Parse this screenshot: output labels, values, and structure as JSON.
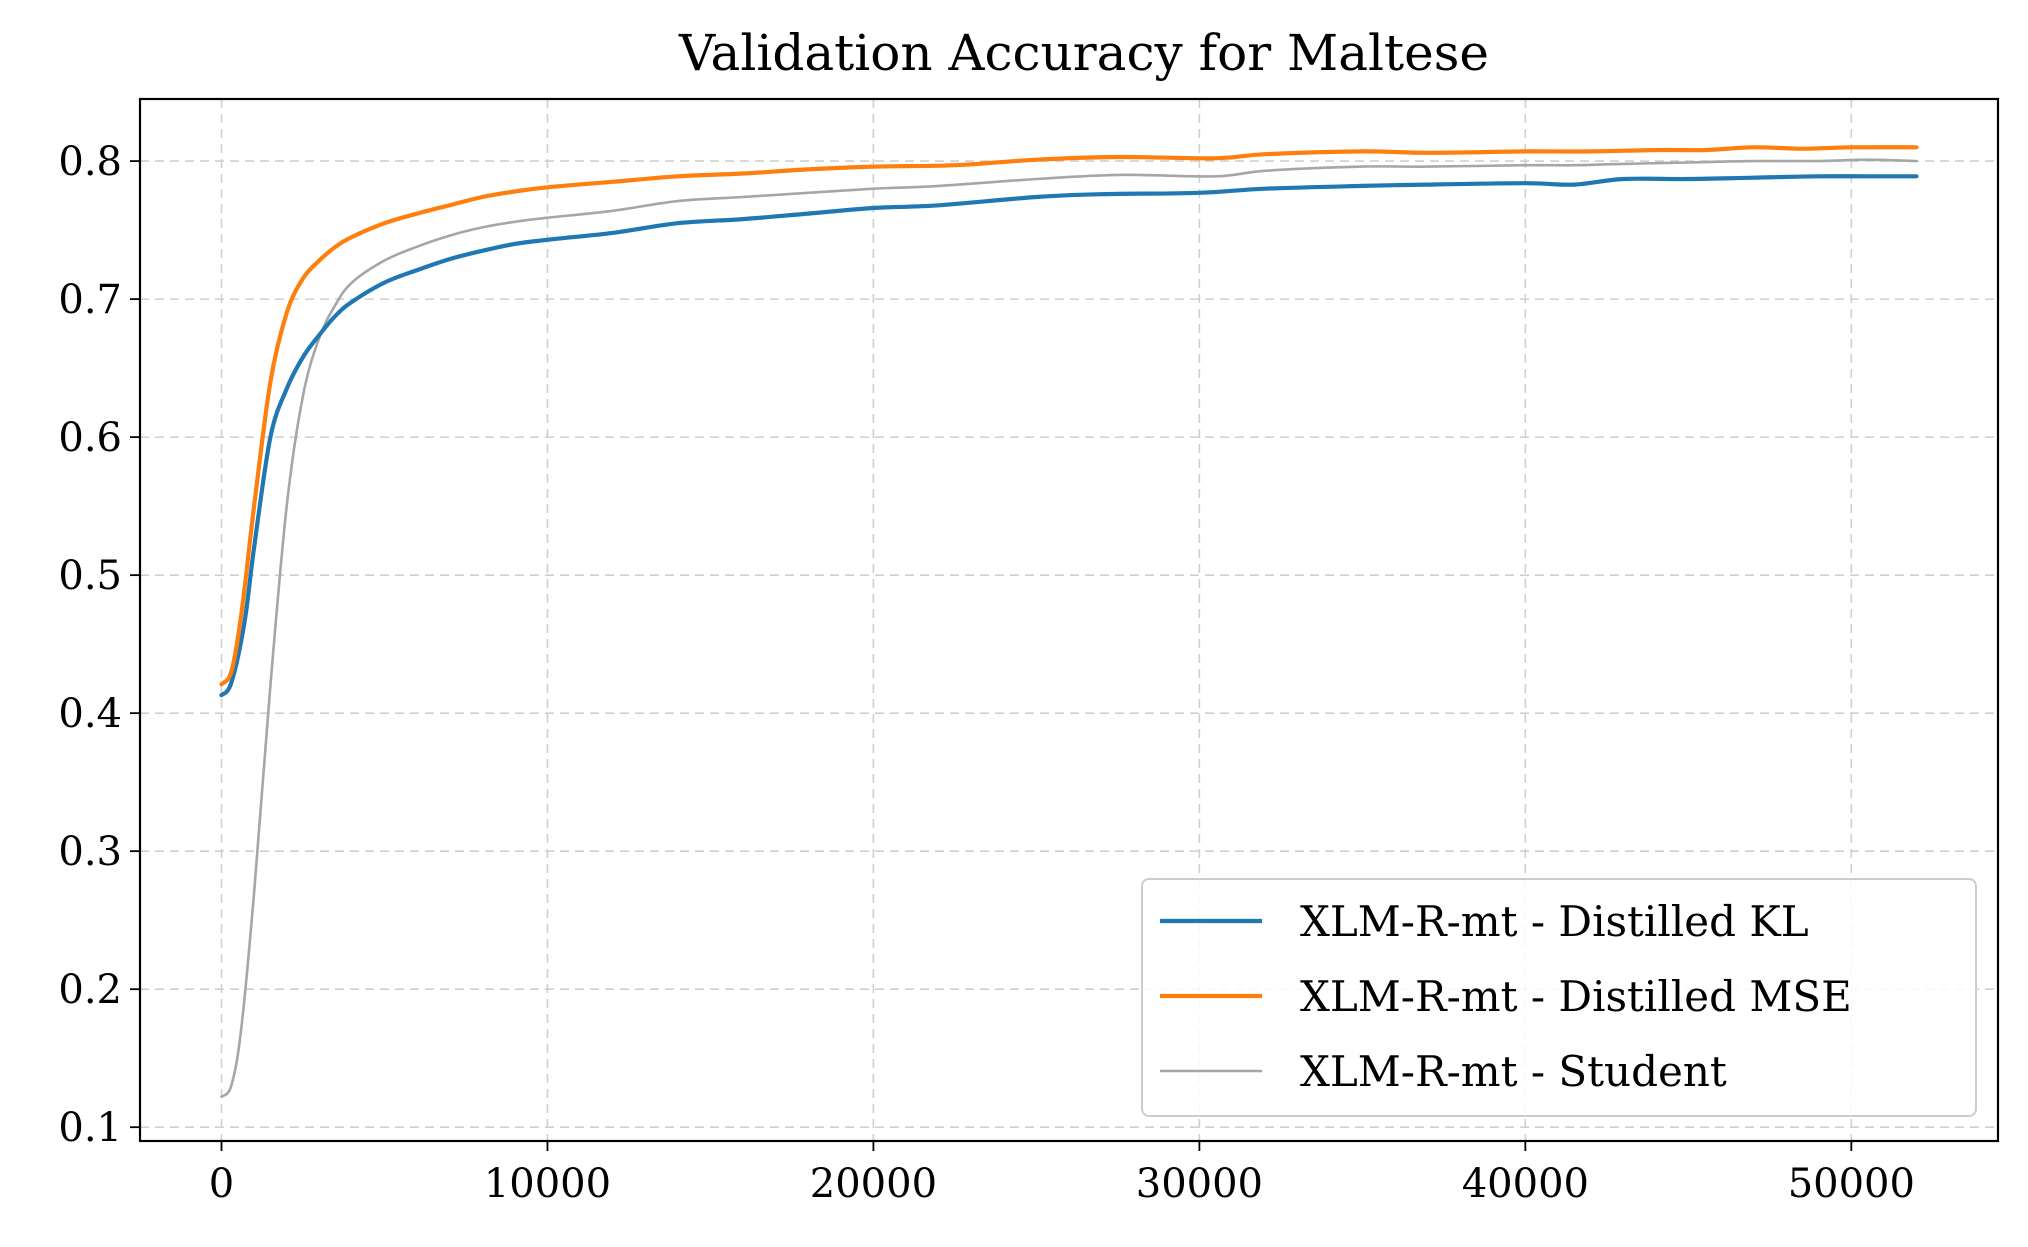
{
  "chart_data": {
    "type": "line",
    "title": "Validation Accuracy for Maltese",
    "xlabel": "",
    "ylabel": "",
    "xlim": [
      -2500,
      54500
    ],
    "ylim": [
      0.09,
      0.845
    ],
    "x_ticks": [
      0,
      10000,
      20000,
      30000,
      40000,
      50000
    ],
    "x_tick_labels": [
      "0",
      "10000",
      "20000",
      "30000",
      "40000",
      "50000"
    ],
    "y_ticks": [
      0.1,
      0.2,
      0.3,
      0.4,
      0.5,
      0.6,
      0.7,
      0.8
    ],
    "y_tick_labels": [
      "0.1",
      "0.2",
      "0.3",
      "0.4",
      "0.5",
      "0.6",
      "0.7",
      "0.8"
    ],
    "grid": true,
    "legend_position": "lower-right",
    "series": [
      {
        "name": "XLM-R-mt - Distilled KL",
        "color": "#1f77b4",
        "x": [
          0,
          300,
          700,
          1000,
          1500,
          2000,
          2500,
          3000,
          3500,
          4000,
          5000,
          6000,
          7000,
          8000,
          9000,
          10000,
          12000,
          14000,
          16000,
          18000,
          20000,
          22000,
          25000,
          27000,
          30000,
          32000,
          35000,
          37000,
          40000,
          41500,
          43000,
          45000,
          47000,
          49000,
          50500,
          52000
        ],
        "values": [
          0.413,
          0.422,
          0.465,
          0.52,
          0.6,
          0.635,
          0.658,
          0.674,
          0.688,
          0.698,
          0.712,
          0.721,
          0.729,
          0.735,
          0.74,
          0.743,
          0.748,
          0.755,
          0.758,
          0.762,
          0.766,
          0.768,
          0.774,
          0.776,
          0.777,
          0.78,
          0.782,
          0.783,
          0.784,
          0.783,
          0.787,
          0.787,
          0.788,
          0.789,
          0.789,
          0.789
        ]
      },
      {
        "name": "XLM-R-mt - Distilled MSE",
        "color": "#ff7f0e",
        "x": [
          0,
          300,
          600,
          1000,
          1500,
          2000,
          2500,
          3000,
          3500,
          4000,
          5000,
          6000,
          7000,
          8000,
          9000,
          10000,
          12000,
          14000,
          16000,
          18000,
          20000,
          22500,
          25000,
          27500,
          30500,
          32000,
          35000,
          37000,
          40000,
          42000,
          44000,
          45500,
          47000,
          48500,
          50000,
          52000
        ],
        "values": [
          0.421,
          0.43,
          0.47,
          0.55,
          0.64,
          0.69,
          0.715,
          0.728,
          0.738,
          0.745,
          0.755,
          0.762,
          0.768,
          0.774,
          0.778,
          0.781,
          0.785,
          0.789,
          0.791,
          0.794,
          0.796,
          0.797,
          0.801,
          0.803,
          0.802,
          0.805,
          0.807,
          0.806,
          0.807,
          0.807,
          0.808,
          0.808,
          0.81,
          0.809,
          0.81,
          0.81
        ]
      },
      {
        "name": "XLM-R-mt - Student",
        "color": "#a6a6a6",
        "x": [
          0,
          300,
          600,
          1000,
          1500,
          2000,
          2500,
          3000,
          3500,
          4000,
          5000,
          6000,
          7000,
          8000,
          9000,
          10000,
          12000,
          14000,
          16000,
          18000,
          20000,
          22000,
          25000,
          27500,
          30500,
          32000,
          35000,
          37000,
          40000,
          41500,
          43000,
          45000,
          47000,
          49000,
          50500,
          52000
        ],
        "values": [
          0.122,
          0.13,
          0.17,
          0.27,
          0.42,
          0.55,
          0.63,
          0.672,
          0.696,
          0.712,
          0.728,
          0.738,
          0.746,
          0.752,
          0.756,
          0.759,
          0.764,
          0.771,
          0.774,
          0.777,
          0.78,
          0.782,
          0.787,
          0.79,
          0.789,
          0.793,
          0.796,
          0.796,
          0.797,
          0.797,
          0.798,
          0.799,
          0.8,
          0.8,
          0.801,
          0.8
        ]
      }
    ]
  }
}
